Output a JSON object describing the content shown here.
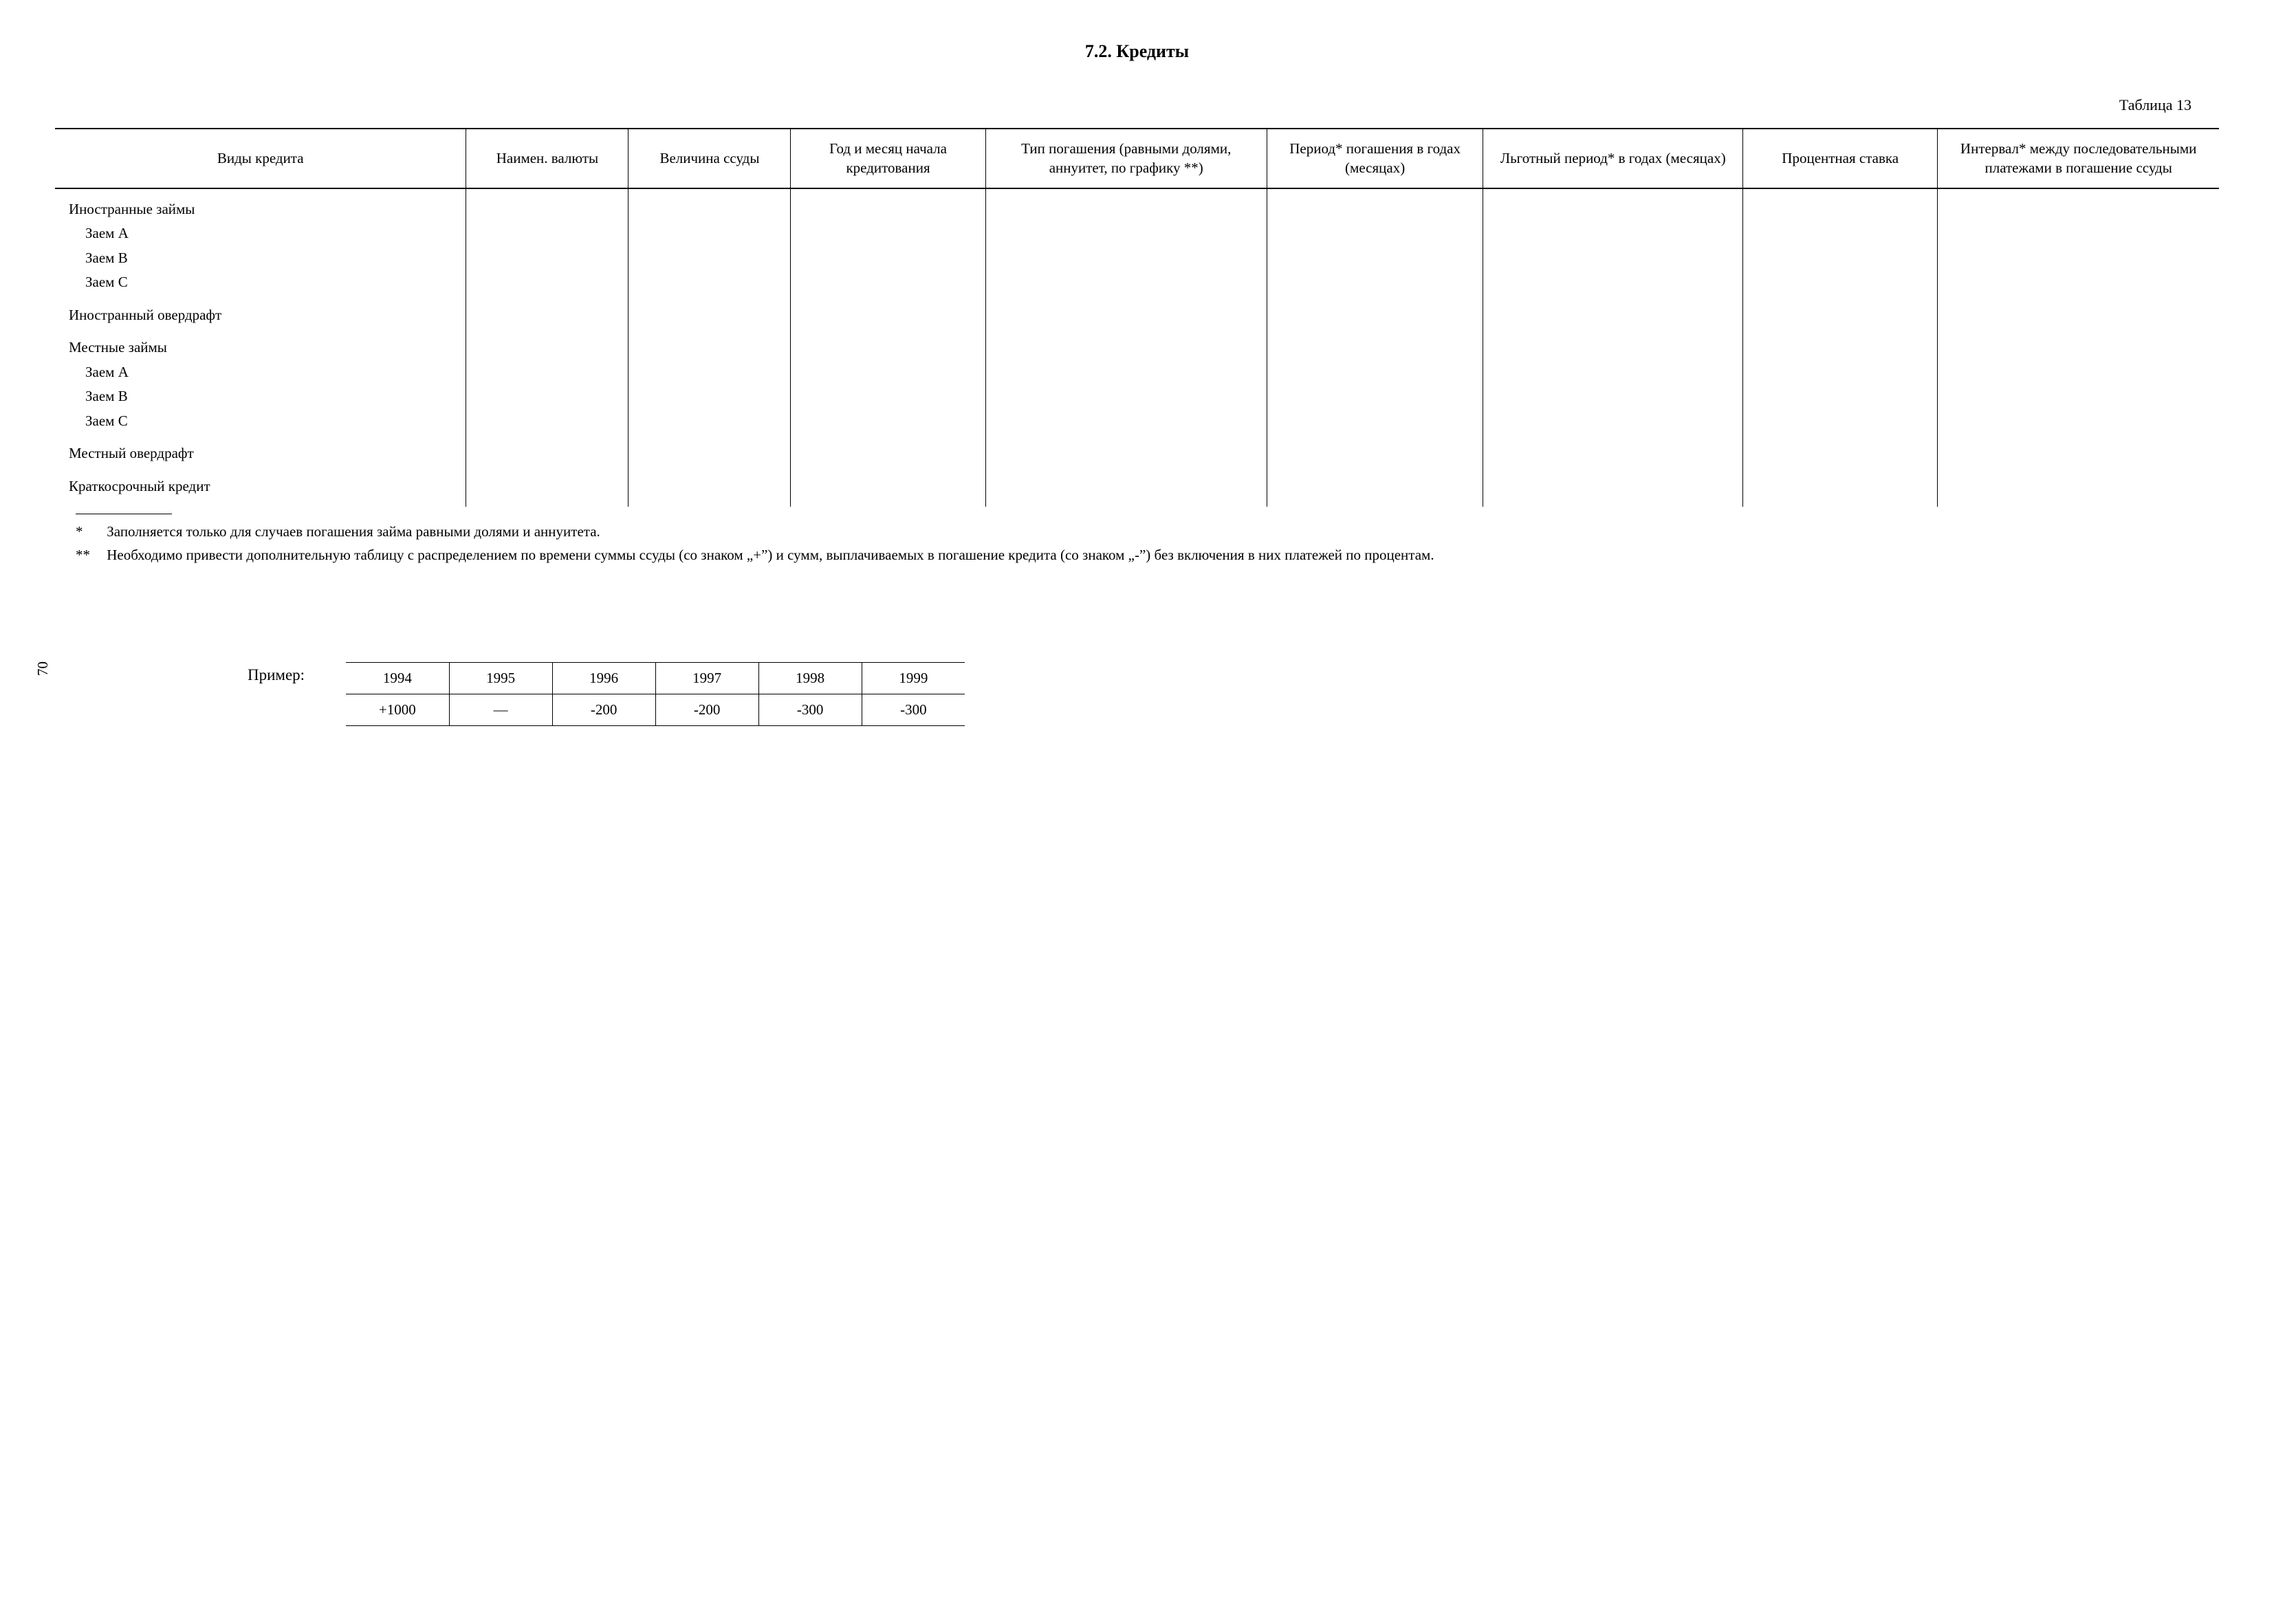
{
  "page_number_rotated": "70",
  "section_title": "7.2. Кредиты",
  "table_caption": "Таблица 13",
  "main_table": {
    "columns": [
      "Виды кредита",
      "Наимен. валюты",
      "Величина ссуды",
      "Год и месяц начала кредитова­ния",
      "Тип погашения (равными долями, аннуитет, по графику **)",
      "Период* погашения в годах (месяцах)",
      "Льготный период* в годах (месяцах)",
      "Процентная ставка",
      "Интервал* между последова­тельными платежами в погашение ссуды"
    ],
    "column_widths_pct": [
      19,
      7.5,
      7.5,
      9,
      13,
      10,
      12,
      9,
      13
    ],
    "rows": [
      {
        "label": "Иностранные займы",
        "indent": 0,
        "gap_before": false
      },
      {
        "label": "Заем А",
        "indent": 1,
        "gap_before": false
      },
      {
        "label": "Заем В",
        "indent": 1,
        "gap_before": false
      },
      {
        "label": "Заем С",
        "indent": 1,
        "gap_before": false
      },
      {
        "label": "Иностранный овердрафт",
        "indent": 0,
        "gap_before": true
      },
      {
        "label": "Местные займы",
        "indent": 0,
        "gap_before": true
      },
      {
        "label": "Заем А",
        "indent": 1,
        "gap_before": false
      },
      {
        "label": "Заем В",
        "indent": 1,
        "gap_before": false
      },
      {
        "label": "Заем С",
        "indent": 1,
        "gap_before": false
      },
      {
        "label": "Местный овердрафт",
        "indent": 0,
        "gap_before": true
      },
      {
        "label": "Краткосрочный кредит",
        "indent": 0,
        "gap_before": true
      }
    ]
  },
  "footnotes": {
    "note1_marker": "*",
    "note1_text": "Заполняется только для случаев погашения займа равными долями и аннуитета.",
    "note2_marker": "**",
    "note2_text": "Необходимо привести дополнительную таблицу с распределением по времени суммы ссуды (со знаком „+”) и сумм, выплачиваемых в погашение кредита (со знаком „-”) без включения в них платежей по процентам."
  },
  "example": {
    "label": "Пример:",
    "years": [
      "1994",
      "1995",
      "1996",
      "1997",
      "1998",
      "1999"
    ],
    "values": [
      "+1000",
      "—",
      "-200",
      "-200",
      "-300",
      "-300"
    ]
  }
}
